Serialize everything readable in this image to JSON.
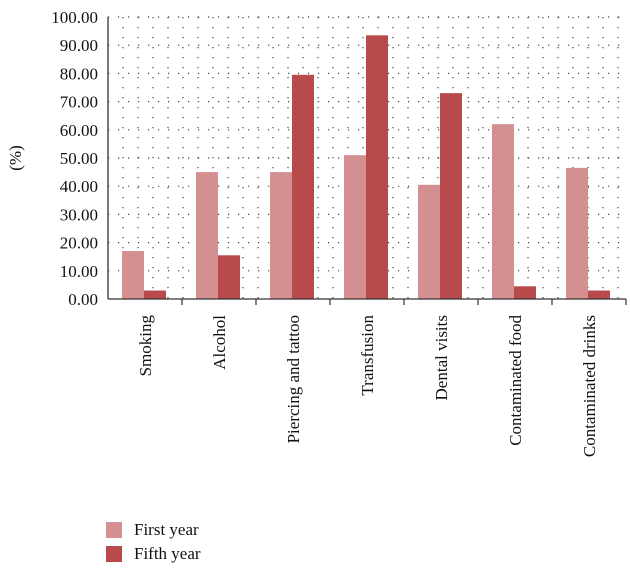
{
  "chart_data": {
    "type": "bar",
    "title": "",
    "xlabel": "",
    "ylabel": "(%)",
    "ylim": [
      0,
      100
    ],
    "yticks": [
      "0.00",
      "10.00",
      "20.00",
      "30.00",
      "40.00",
      "50.00",
      "60.00",
      "70.00",
      "80.00",
      "90.00",
      "100.00"
    ],
    "grid": "dotted",
    "legend_position": "bottom-left",
    "categories": [
      "Smoking",
      "Alcohol",
      "Piercing and tattoo",
      "Transfusion",
      "Dental visits",
      "Contaminated food",
      "Contaminated drinks"
    ],
    "series": [
      {
        "name": "First year",
        "color": "#d48f90",
        "values": [
          17,
          45,
          45,
          51,
          40.5,
          62,
          46.5
        ]
      },
      {
        "name": "Fifth year",
        "color": "#b84a4c",
        "values": [
          3,
          15.5,
          79.5,
          93.5,
          73,
          4.5,
          3
        ]
      }
    ]
  }
}
